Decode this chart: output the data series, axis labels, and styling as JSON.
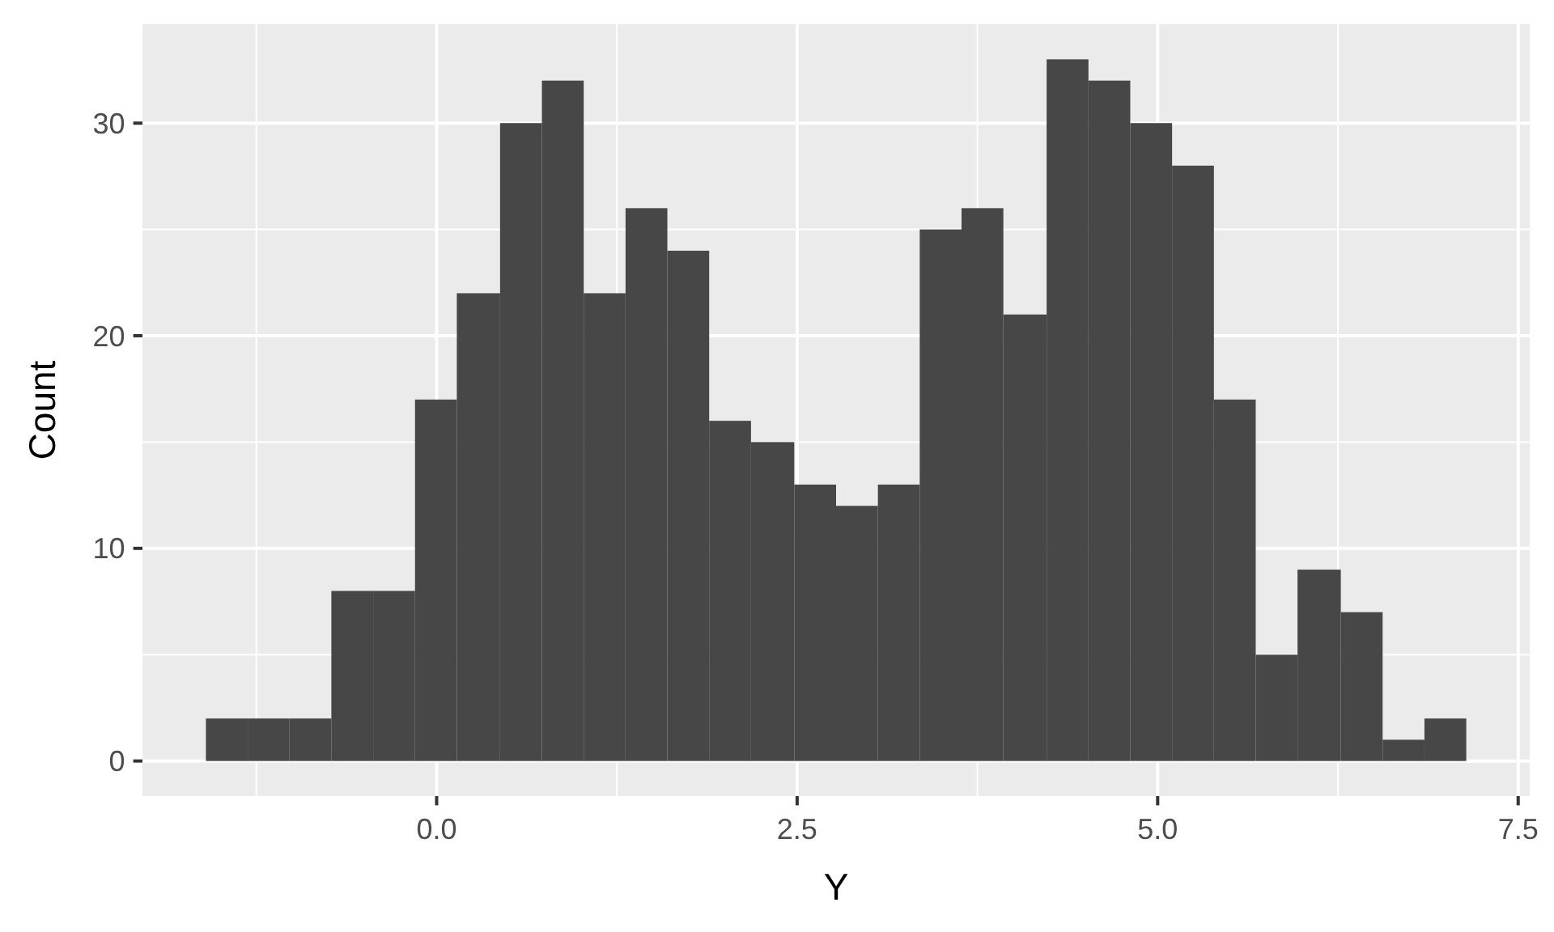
{
  "chart_data": {
    "type": "histogram",
    "xlabel": "Y",
    "ylabel": "Count",
    "bins": [
      -1.6,
      -1.31,
      -1.02,
      -0.73,
      -0.44,
      -0.15,
      0.14,
      0.44,
      0.73,
      1.02,
      1.31,
      1.6,
      1.89,
      2.18,
      2.48,
      2.77,
      3.06,
      3.35,
      3.64,
      3.93,
      4.23,
      4.52,
      4.81,
      5.1,
      5.39,
      5.68,
      5.97,
      6.27,
      6.56,
      6.85,
      7.14
    ],
    "values": [
      2,
      2,
      2,
      8,
      8,
      17,
      22,
      30,
      32,
      22,
      26,
      24,
      16,
      15,
      13,
      12,
      13,
      25,
      26,
      21,
      33,
      32,
      30,
      28,
      17,
      5,
      9,
      7,
      1,
      2
    ],
    "color": "#474747",
    "xlim": [
      -2.04,
      7.58
    ],
    "xticks": [
      {
        "value": 0,
        "label": "0.0"
      },
      2.5,
      {
        "value": 5,
        "label": "5.0"
      },
      7.5
    ],
    "ylim": [
      -1.65,
      34.65
    ],
    "yticks": [
      0,
      10,
      20,
      30
    ],
    "grid": true
  }
}
